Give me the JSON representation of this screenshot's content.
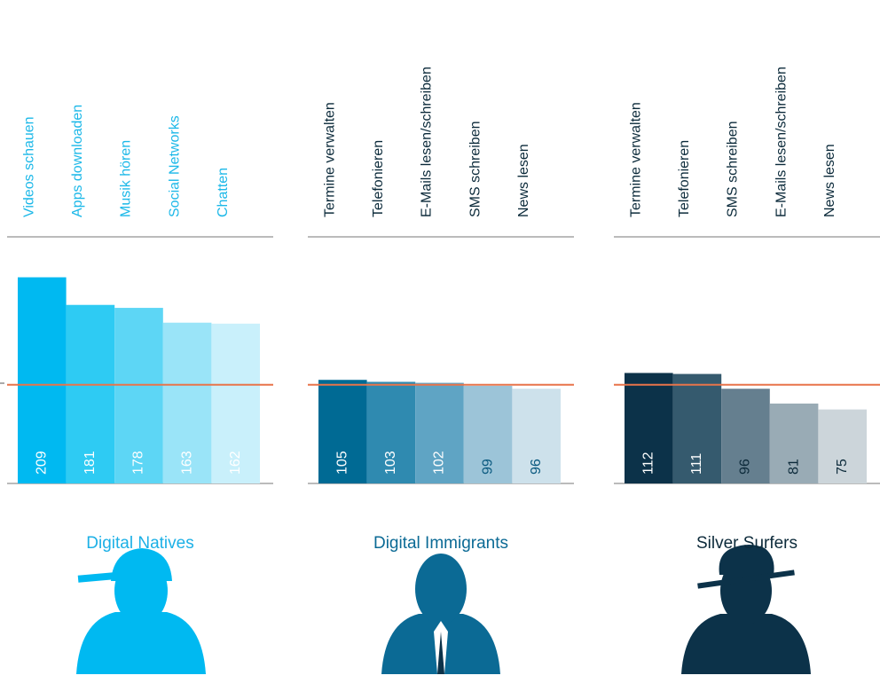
{
  "chart_data": [
    {
      "type": "bar",
      "title": "Digital Natives",
      "title_color": "#1cb0e6",
      "category_color": "#1cb8e8",
      "categories": [
        "Videos schauen",
        "Apps downloaden",
        "Musik hören",
        "Social Networks",
        "Chatten"
      ],
      "values": [
        209,
        181,
        178,
        163,
        162
      ],
      "colors": [
        "#00b9f1",
        "#2ecbf3",
        "#5dd6f5",
        "#9ae4f8",
        "#c9f0fb"
      ],
      "label_colors": [
        "#ffffff",
        "#ffffff",
        "#ffffff",
        "#ffffff",
        "#ffffff"
      ],
      "ylim": [
        0,
        250
      ],
      "reference": 100,
      "reference_color": "#e8744a"
    },
    {
      "type": "bar",
      "title": "Digital Immigrants",
      "title_color": "#0b6a95",
      "category_color": "#0b2a3a",
      "categories": [
        "Termine verwalten",
        "Telefonieren",
        "E-Mails lesen/schreiben",
        "SMS schreiben",
        "News lesen"
      ],
      "values": [
        105,
        103,
        102,
        99,
        96
      ],
      "colors": [
        "#006a94",
        "#2f8ab0",
        "#5fa4c4",
        "#9cc4d8",
        "#cde1eb"
      ],
      "label_colors": [
        "#ffffff",
        "#ffffff",
        "#ffffff",
        "#0b5a80",
        "#0b5a80"
      ],
      "ylim": [
        0,
        250
      ],
      "reference": 100,
      "reference_color": "#e8744a"
    },
    {
      "type": "bar",
      "title": "Silver Surfers",
      "title_color": "#0c2a3a",
      "category_color": "#0b2a3a",
      "categories": [
        "Termine verwalten",
        "Telefonieren",
        "SMS schreiben",
        "E-Mails lesen/schreiben",
        "News lesen"
      ],
      "values": [
        112,
        111,
        96,
        81,
        75
      ],
      "colors": [
        "#0c3249",
        "#355a6e",
        "#657f8f",
        "#99abb5",
        "#ccd5da"
      ],
      "label_colors": [
        "#ffffff",
        "#ffffff",
        "#0c2a3a",
        "#0c2a3a",
        "#0c2a3a"
      ],
      "ylim": [
        0,
        250
      ],
      "reference": 100,
      "reference_color": "#e8744a"
    }
  ]
}
